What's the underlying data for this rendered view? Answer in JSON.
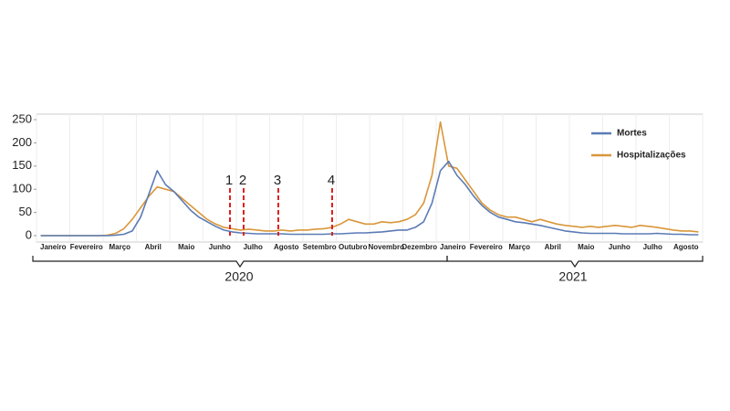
{
  "chart_data": {
    "type": "line",
    "categories": [
      null,
      "Janeiro",
      null,
      null,
      null,
      "Fevereiro",
      null,
      null,
      null,
      "Março",
      null,
      null,
      null,
      "Abril",
      null,
      null,
      null,
      "Maio",
      null,
      null,
      null,
      "Junho",
      null,
      null,
      null,
      "Julho",
      null,
      null,
      null,
      "Agosto",
      null,
      null,
      null,
      "Setembro",
      null,
      null,
      null,
      "Outubro",
      null,
      null,
      null,
      "Novembro",
      null,
      null,
      null,
      "Dezembro",
      null,
      null,
      null,
      "Janeiro",
      null,
      null,
      null,
      "Fevereiro",
      null,
      null,
      null,
      "Março",
      null,
      null,
      null,
      "Abril",
      null,
      null,
      null,
      "Maio",
      null,
      null,
      null,
      "Junho",
      null,
      null,
      null,
      "Julho",
      null,
      null,
      null,
      "Agosto",
      null,
      null
    ],
    "series": [
      {
        "name": "Mortes",
        "color": "#5b7bb5",
        "values": [
          0,
          0,
          0,
          0,
          0,
          0,
          0,
          0,
          0,
          1,
          3,
          10,
          40,
          90,
          140,
          110,
          95,
          75,
          55,
          40,
          30,
          20,
          12,
          8,
          6,
          5,
          4,
          4,
          4,
          4,
          3,
          3,
          3,
          3,
          3,
          4,
          4,
          5,
          6,
          6,
          7,
          8,
          10,
          12,
          12,
          18,
          30,
          70,
          140,
          160,
          130,
          110,
          85,
          65,
          50,
          40,
          35,
          30,
          28,
          25,
          22,
          18,
          14,
          10,
          8,
          6,
          5,
          5,
          5,
          5,
          4,
          4,
          4,
          4,
          5,
          4,
          3,
          3,
          2,
          2
        ]
      },
      {
        "name": "Hospitalizações",
        "color": "#d9973a",
        "values": [
          0,
          0,
          0,
          0,
          0,
          0,
          0,
          0,
          1,
          5,
          15,
          35,
          60,
          85,
          105,
          100,
          95,
          80,
          65,
          50,
          35,
          25,
          18,
          15,
          12,
          14,
          12,
          10,
          10,
          12,
          10,
          12,
          12,
          14,
          15,
          18,
          25,
          35,
          30,
          25,
          25,
          30,
          28,
          30,
          35,
          45,
          70,
          130,
          245,
          150,
          145,
          120,
          95,
          70,
          55,
          45,
          40,
          40,
          35,
          30,
          35,
          30,
          25,
          22,
          20,
          18,
          20,
          18,
          20,
          22,
          20,
          18,
          22,
          20,
          18,
          15,
          12,
          10,
          10,
          8
        ]
      }
    ],
    "ylim": [
      0,
      250
    ],
    "yticks": [
      0,
      50,
      100,
      150,
      200,
      250
    ],
    "grid": true,
    "legend": "top-right",
    "markers": [
      "1",
      "2",
      "3",
      "4"
    ],
    "year_labels": [
      "2020",
      "2021"
    ]
  }
}
